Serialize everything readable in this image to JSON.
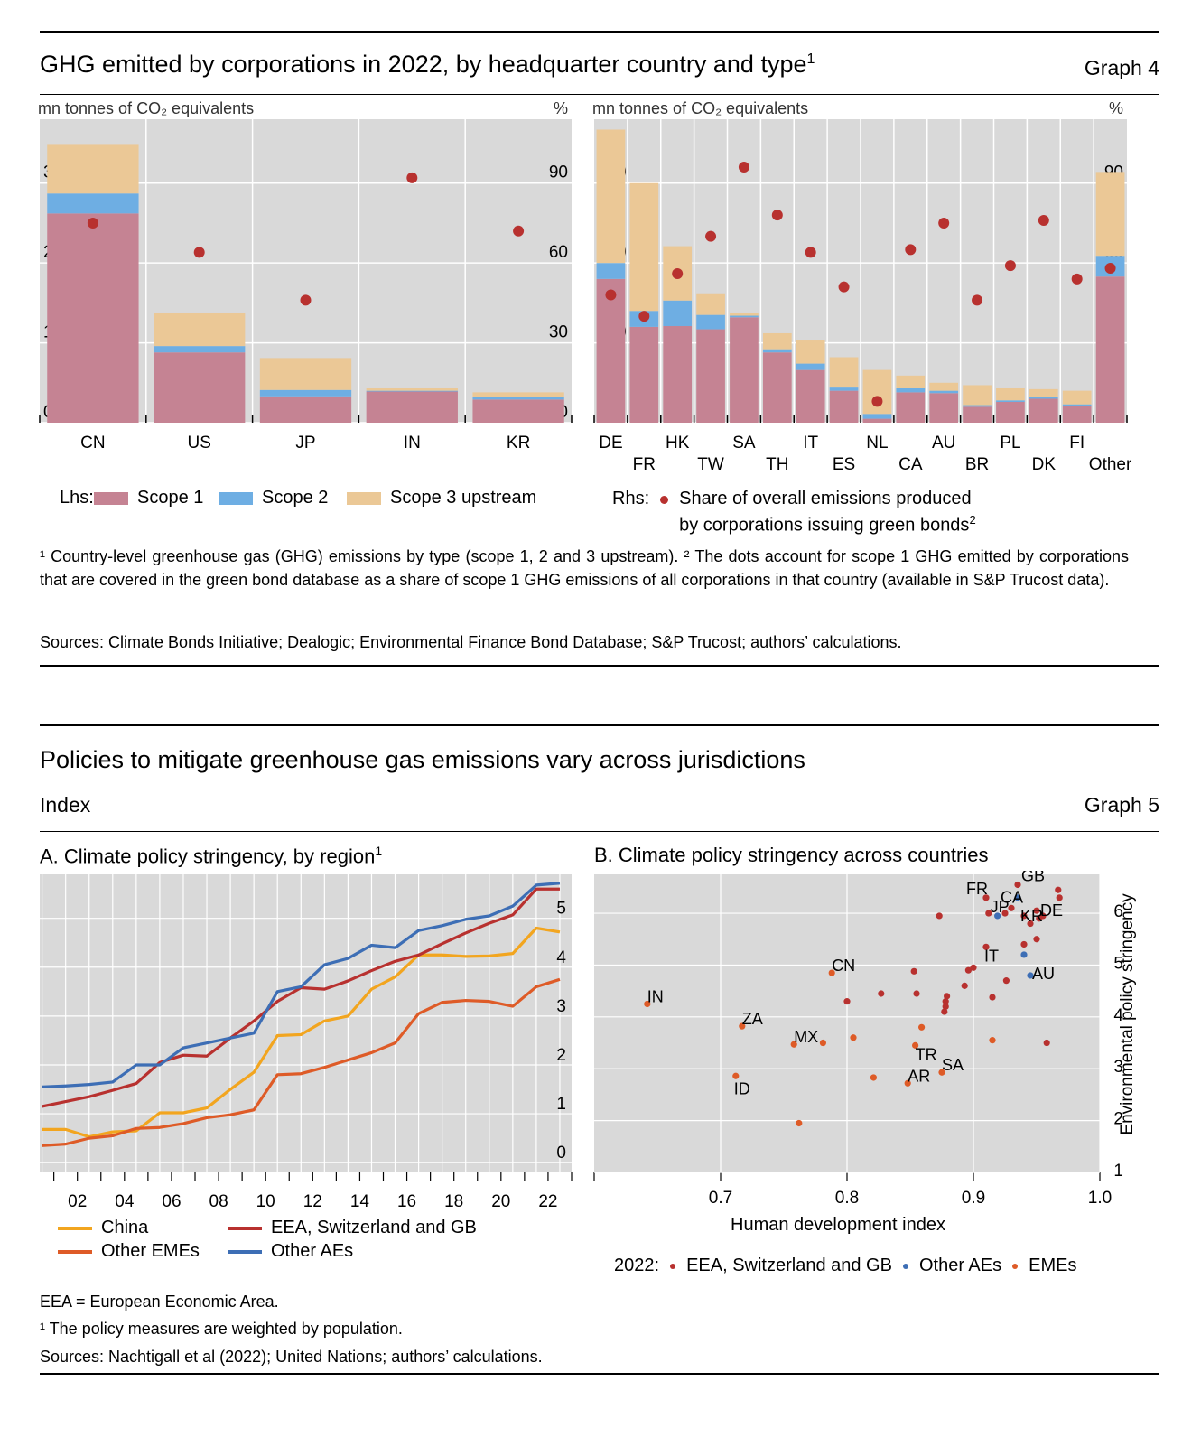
{
  "graph4": {
    "title": "GHG emitted by corporations in 2022, by headquarter country and type",
    "title_sup": "1",
    "tag": "Graph 4",
    "left_unit": "mn tonnes of CO₂ equivalents",
    "left_unit_r": "%",
    "right_unit": "mn tonnes of CO₂ equivalents",
    "right_unit_r": "%",
    "legend_lhs": "Lhs:",
    "legend_s1": "Scope 1",
    "legend_s2": "Scope 2",
    "legend_s3": "Scope 3 upstream",
    "legend_rhs": "Rhs:",
    "legend_dots_1": "Share of overall emissions produced",
    "legend_dots_2": "by corporations issuing green bonds",
    "legend_dots_sup": "2",
    "footnote": "¹ Country-level greenhouse gas (GHG) emissions by type (scope 1, 2 and 3 upstream).  ² The dots account for scope 1 GHG emitted by corporations that are covered in the green bond database as a share of scope 1 GHG emissions of all corporations in that country (available in S&P Trucost data).",
    "sources": "Sources: Climate Bonds Initiative; Dealogic; Environmental Finance Bond Database; S&P Trucost; authors’ calculations.",
    "colors": {
      "scope1": "#c58393",
      "scope2": "#6eaee3",
      "scope3": "#ebc896",
      "dot": "#b8312f",
      "panel": "#d9d9d9"
    }
  },
  "graph5": {
    "title": "Policies to mitigate greenhouse gas emissions vary across jurisdictions",
    "unit": "Index",
    "tag": "Graph 5",
    "panelA_title": "A. Climate policy stringency, by region",
    "panelA_sup": "1",
    "panelB_title": "B. Climate policy stringency across countries",
    "legend_china": "China",
    "legend_eea": "EEA, Switzerland and GB",
    "legend_other_emes": "Other EMEs",
    "legend_other_aes": "Other AEs",
    "legendB_prefix": "2022:",
    "legendB_eea": "EEA, Switzerland and GB",
    "legendB_aes": "Other AEs",
    "legendB_emes": "EMEs",
    "note_eea": "EEA = European Economic Area.",
    "footnote": "¹ The policy measures are weighted by population.",
    "sources": "Sources: Nachtigall et al (2022); United Nations; authors’ calculations.",
    "colors": {
      "china": "#f2a51f",
      "eea": "#b8312f",
      "other_emes": "#de5b27",
      "other_aes": "#3d6eb5",
      "panel": "#d9d9d9"
    }
  },
  "chart_data": [
    {
      "type": "bar",
      "panel": "Graph 4 left",
      "categories": [
        "CN",
        "US",
        "JP",
        "IN",
        "KR"
      ],
      "stacked": true,
      "series": [
        {
          "name": "Scope 1",
          "values": [
            2620,
            880,
            330,
            390,
            290
          ]
        },
        {
          "name": "Scope 2",
          "values": [
            250,
            80,
            80,
            10,
            30
          ]
        },
        {
          "name": "Scope 3 upstream",
          "values": [
            620,
            420,
            400,
            30,
            60
          ]
        }
      ],
      "dots": {
        "name": "Share of overall emissions produced by corporations issuing green bonds",
        "axis": "right",
        "values": [
          75,
          64,
          46,
          92,
          72
        ]
      },
      "ylim_left": [
        0,
        3800
      ],
      "yticks_left": [
        0,
        1000,
        2000,
        3000
      ],
      "ylim_right": [
        0,
        114
      ],
      "yticks_right": [
        0,
        30,
        60,
        90
      ],
      "ylabel_left": "mn tonnes of CO₂ equivalents",
      "ylabel_right": "%"
    },
    {
      "type": "bar",
      "panel": "Graph 4 right",
      "categories": [
        "DE",
        "FR",
        "HK",
        "TW",
        "SA",
        "TH",
        "IT",
        "ES",
        "NL",
        "CA",
        "AU",
        "BR",
        "PL",
        "DK",
        "FI",
        "Other"
      ],
      "stacked": true,
      "series": [
        {
          "name": "Scope 1",
          "values": [
            180,
            120,
            121,
            117,
            132,
            88,
            66,
            40,
            5,
            38,
            37,
            20,
            26,
            30,
            21,
            183
          ]
        },
        {
          "name": "Scope 2",
          "values": [
            20,
            20,
            32,
            18,
            2,
            4,
            8,
            4,
            6,
            5,
            3,
            2,
            2,
            2,
            2,
            26
          ]
        },
        {
          "name": "Scope 3 upstream",
          "values": [
            167,
            160,
            68,
            27,
            4,
            20,
            30,
            38,
            55,
            16,
            10,
            25,
            15,
            10,
            17,
            105
          ]
        }
      ],
      "dots": {
        "axis": "right",
        "values": [
          48,
          40,
          56,
          70,
          96,
          78,
          64,
          51,
          8,
          65,
          75,
          46,
          59,
          76,
          54,
          58
        ]
      },
      "ylim_left": [
        0,
        380
      ],
      "yticks_left": [
        0,
        100,
        200,
        300
      ],
      "ylim_right": [
        0,
        114
      ],
      "yticks_right": [
        0,
        30,
        60,
        90
      ],
      "ylabel_left": "mn tonnes of CO₂ equivalents",
      "ylabel_right": "%"
    },
    {
      "type": "line",
      "panel": "Graph 5 A",
      "x": [
        2000,
        2001,
        2002,
        2003,
        2004,
        2005,
        2006,
        2007,
        2008,
        2009,
        2010,
        2011,
        2012,
        2013,
        2014,
        2015,
        2016,
        2017,
        2018,
        2019,
        2020,
        2021,
        2022
      ],
      "xticks": [
        "02",
        "04",
        "06",
        "08",
        "10",
        "12",
        "14",
        "16",
        "18",
        "20",
        "22"
      ],
      "series": [
        {
          "name": "China",
          "values": [
            0.68,
            0.68,
            0.53,
            0.63,
            0.65,
            1.02,
            1.02,
            1.12,
            1.5,
            1.85,
            2.6,
            2.62,
            2.9,
            3.0,
            3.55,
            3.8,
            4.25,
            4.25,
            4.22,
            4.23,
            4.28,
            4.8,
            4.72
          ]
        },
        {
          "name": "EEA, Switzerland and GB",
          "values": [
            1.15,
            1.25,
            1.35,
            1.48,
            1.62,
            2.05,
            2.2,
            2.18,
            2.55,
            2.9,
            3.3,
            3.58,
            3.55,
            3.72,
            3.93,
            4.12,
            4.25,
            4.48,
            4.7,
            4.9,
            5.07,
            5.6,
            5.6
          ]
        },
        {
          "name": "Other EMEs",
          "values": [
            0.35,
            0.38,
            0.5,
            0.55,
            0.7,
            0.72,
            0.8,
            0.92,
            0.98,
            1.08,
            1.8,
            1.82,
            1.95,
            2.1,
            2.25,
            2.45,
            3.05,
            3.28,
            3.32,
            3.3,
            3.2,
            3.6,
            3.75
          ]
        },
        {
          "name": "Other AEs",
          "values": [
            1.55,
            1.57,
            1.6,
            1.65,
            2.0,
            2.0,
            2.35,
            2.45,
            2.55,
            2.65,
            3.5,
            3.6,
            4.05,
            4.18,
            4.45,
            4.4,
            4.75,
            4.85,
            4.98,
            5.05,
            5.25,
            5.68,
            5.72
          ]
        }
      ],
      "ylim": [
        -0.2,
        5.9
      ],
      "yticks": [
        0,
        1,
        2,
        3,
        4,
        5
      ]
    },
    {
      "type": "scatter",
      "panel": "Graph 5 B",
      "xlabel": "Human development index",
      "ylabel": "Environmental policy stringency",
      "xlim": [
        0.6,
        1.0
      ],
      "xticks": [
        0.7,
        0.8,
        0.9,
        1.0
      ],
      "ylim": [
        1,
        6.75
      ],
      "yticks": [
        1,
        2,
        3,
        4,
        5,
        6
      ],
      "series": [
        {
          "name": "EEA, Switzerland and GB",
          "points": [
            {
              "x": 0.91,
              "y": 6.3,
              "label": "FR"
            },
            {
              "x": 0.935,
              "y": 6.55,
              "label": "GB"
            },
            {
              "x": 0.93,
              "y": 6.1,
              "label": "CA"
            },
            {
              "x": 0.94,
              "y": 5.95,
              "label": "KR"
            },
            {
              "x": 0.95,
              "y": 6.05,
              "label": "DE"
            },
            {
              "x": 0.91,
              "y": 5.35,
              "label": "IT"
            },
            {
              "x": 0.967,
              "y": 6.45
            },
            {
              "x": 0.968,
              "y": 6.3
            },
            {
              "x": 0.952,
              "y": 5.9
            },
            {
              "x": 0.945,
              "y": 5.8
            },
            {
              "x": 0.955,
              "y": 5.95
            },
            {
              "x": 0.912,
              "y": 6.0
            },
            {
              "x": 0.925,
              "y": 6.0
            },
            {
              "x": 0.95,
              "y": 5.5
            },
            {
              "x": 0.94,
              "y": 5.4
            },
            {
              "x": 0.873,
              "y": 5.95
            },
            {
              "x": 0.9,
              "y": 4.95
            },
            {
              "x": 0.896,
              "y": 4.9
            },
            {
              "x": 0.853,
              "y": 4.88
            },
            {
              "x": 0.926,
              "y": 4.7
            },
            {
              "x": 0.893,
              "y": 4.6
            },
            {
              "x": 0.879,
              "y": 4.4
            },
            {
              "x": 0.855,
              "y": 4.45
            },
            {
              "x": 0.827,
              "y": 4.45
            },
            {
              "x": 0.878,
              "y": 4.3
            },
            {
              "x": 0.878,
              "y": 4.2
            },
            {
              "x": 0.877,
              "y": 4.1
            },
            {
              "x": 0.915,
              "y": 4.38
            },
            {
              "x": 0.8,
              "y": 4.3
            },
            {
              "x": 0.958,
              "y": 3.5
            }
          ]
        },
        {
          "name": "Other AEs",
          "points": [
            {
              "x": 0.919,
              "y": 5.95,
              "label": "JP"
            },
            {
              "x": 0.935,
              "y": 6.3
            },
            {
              "x": 0.94,
              "y": 5.2
            },
            {
              "x": 0.945,
              "y": 4.8,
              "label": "AU"
            }
          ]
        },
        {
          "name": "EMEs",
          "points": [
            {
              "x": 0.788,
              "y": 4.85,
              "label": "CN"
            },
            {
              "x": 0.642,
              "y": 4.25,
              "label": "IN"
            },
            {
              "x": 0.717,
              "y": 3.82,
              "label": "ZA"
            },
            {
              "x": 0.758,
              "y": 3.47,
              "label": "MX"
            },
            {
              "x": 0.854,
              "y": 3.45,
              "label": "TR"
            },
            {
              "x": 0.875,
              "y": 2.93,
              "label": "SA"
            },
            {
              "x": 0.848,
              "y": 2.72,
              "label": "AR"
            },
            {
              "x": 0.712,
              "y": 2.86,
              "label": "ID"
            },
            {
              "x": 0.781,
              "y": 3.5
            },
            {
              "x": 0.805,
              "y": 3.6
            },
            {
              "x": 0.859,
              "y": 3.8
            },
            {
              "x": 0.915,
              "y": 3.55
            },
            {
              "x": 0.821,
              "y": 2.83
            },
            {
              "x": 0.762,
              "y": 1.95
            }
          ]
        }
      ]
    }
  ]
}
